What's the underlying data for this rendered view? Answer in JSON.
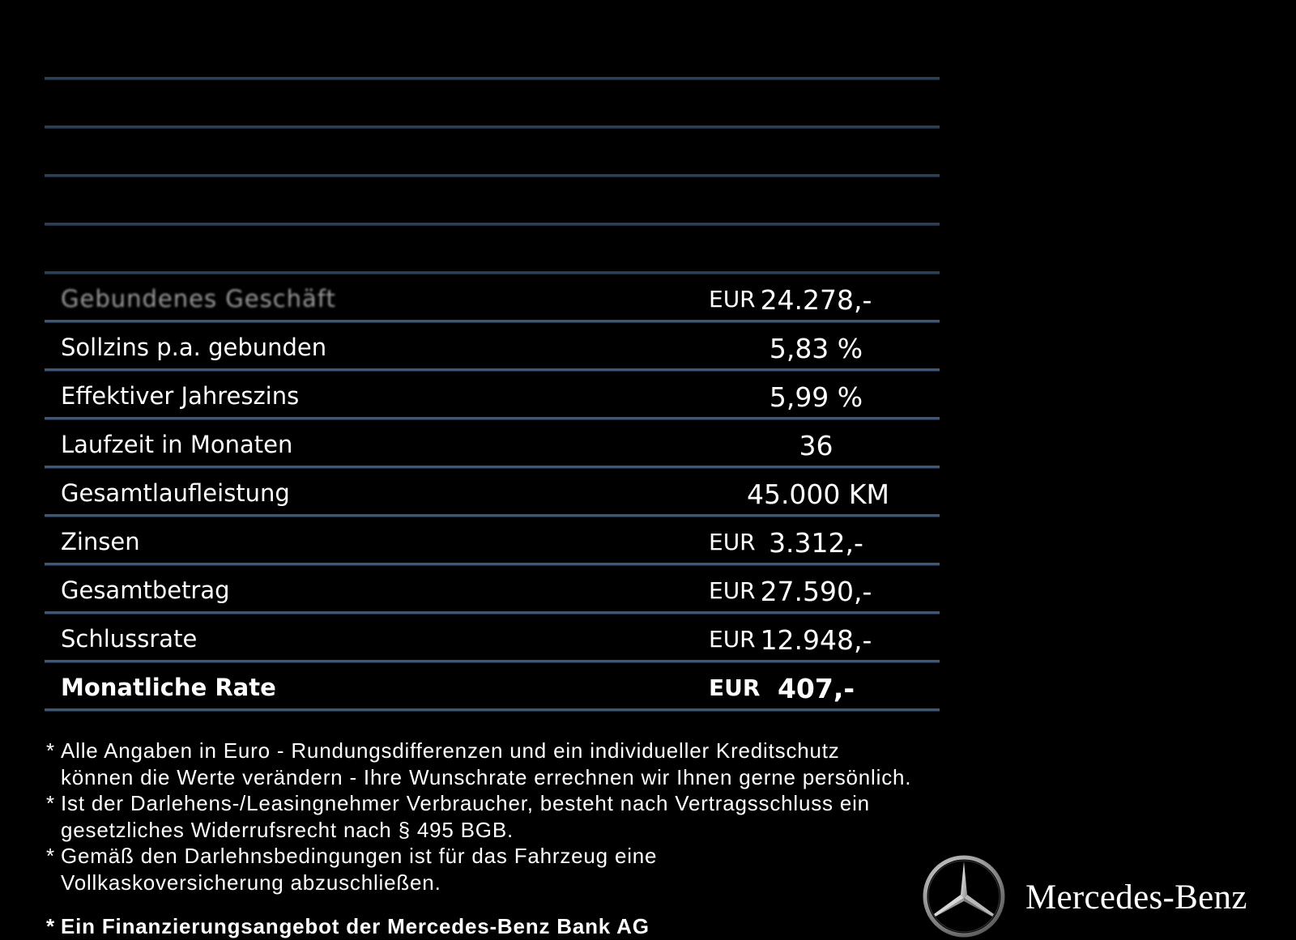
{
  "table": {
    "rows": [
      {
        "label": "",
        "currency": "",
        "value": ""
      },
      {
        "label": "",
        "currency": "",
        "value": ""
      },
      {
        "label": "",
        "currency": "",
        "value": ""
      },
      {
        "label": "",
        "currency": "",
        "value": ""
      },
      {
        "label": "",
        "currency": "",
        "value": ""
      },
      {
        "label": "Gebundenes Geschäft",
        "currency": "EUR",
        "value": "24.278,-"
      },
      {
        "label": "Sollzins p.a. gebunden",
        "currency": "",
        "value": "5,83 %"
      },
      {
        "label": "Effektiver Jahreszins",
        "currency": "",
        "value": "5,99 %"
      },
      {
        "label": "Laufzeit in Monaten",
        "currency": "",
        "value": "36"
      },
      {
        "label": "Gesamtlaufleistung",
        "currency": "",
        "value": "45.000 KM"
      },
      {
        "label": "Zinsen",
        "currency": "EUR",
        "value": "3.312,-"
      },
      {
        "label": "Gesamtbetrag",
        "currency": "EUR",
        "value": "27.590,-"
      },
      {
        "label": "Schlussrate",
        "currency": "EUR",
        "value": "12.948,-"
      },
      {
        "label": "Monatliche Rate",
        "currency": "EUR",
        "value": "407,-"
      }
    ]
  },
  "notes": {
    "star": "*",
    "items": [
      {
        "line1": "Alle Angaben in Euro - Rundungsdifferenzen und ein individueller Kreditschutz",
        "line2": "können die Werte verändern - Ihre Wunschrate errechnen wir Ihnen gerne persönlich."
      },
      {
        "line1": "Ist der Darlehens-/Leasingnehmer Verbraucher, besteht nach Vertragsschluss ein",
        "line2": "gesetzliches Widerrufsrecht nach § 495 BGB."
      },
      {
        "line1": "Gemäß den Darlehnsbedingungen ist für das Fahrzeug eine",
        "line2": "Vollkaskoversicherung abzuschließen."
      }
    ],
    "offer": "Ein Finanzierungsangebot der Mercedes-Benz Bank AG"
  },
  "brand": {
    "wordmark": "Mercedes-Benz",
    "logo_icon": "mercedes-star-icon",
    "colors": {
      "background": "#000000",
      "text": "#ffffff",
      "divider": "#3b5878"
    }
  }
}
